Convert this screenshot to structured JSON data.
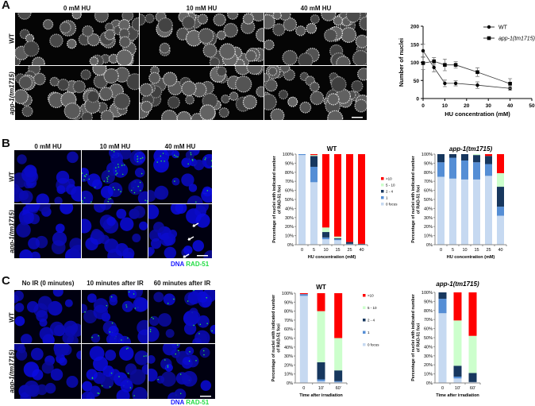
{
  "panels": {
    "A": {
      "label": "A",
      "columns": [
        "0 mM HU",
        "10 mM HU",
        "40 mM HU"
      ],
      "rows": [
        "WT",
        "app-1(tm1715)"
      ],
      "image_tone": "grayscale"
    },
    "B": {
      "label": "B",
      "columns": [
        "0 mM HU",
        "10 mM HU",
        "40 mM HU"
      ],
      "rows": [
        "WT",
        "app-1(tm1715)"
      ],
      "stain_dna": "DNA",
      "stain_rad51": "RAD-51",
      "image_tone": "blue-green"
    },
    "C": {
      "label": "C",
      "columns": [
        "No IR (0 minutes)",
        "10 minutes after IR",
        "60 minutes after IR"
      ],
      "rows": [
        "WT",
        "app-1(tm1715)"
      ],
      "stain_dna": "DNA",
      "stain_rad51": "RAD-51",
      "image_tone": "blue-green"
    }
  },
  "colors": {
    "dna": "#1a1aff",
    "rad51": "#22dd44",
    "0 focus": "#c6d9f1",
    "1": "#558ed5",
    "2 - 4": "#17375e",
    "5 - 10": "#ccffcc",
    ">10": "#ff0000"
  },
  "chart_data": [
    {
      "id": "A",
      "type": "line",
      "xlabel": "HU concentration (mM)",
      "ylabel": "Number of nuclei",
      "xlim": [
        0,
        50
      ],
      "ylim": [
        0,
        200
      ],
      "xticks": [
        0,
        10,
        20,
        30,
        40,
        50
      ],
      "yticks": [
        0,
        50,
        100,
        150,
        200
      ],
      "legend": "top-right",
      "series": [
        {
          "name": "WT",
          "marker": "circle",
          "x": [
            0,
            5,
            10,
            15,
            25,
            40
          ],
          "y": [
            132,
            86,
            42,
            42,
            37,
            28
          ],
          "err": [
            18,
            12,
            9,
            7,
            9,
            5
          ]
        },
        {
          "name": "app-1(tm1715)",
          "marker": "square",
          "x": [
            0,
            5,
            10,
            15,
            25,
            40
          ],
          "y": [
            98,
            103,
            93,
            93,
            73,
            41
          ],
          "err": [
            18,
            10,
            16,
            9,
            12,
            14
          ]
        }
      ]
    },
    {
      "id": "B-WT",
      "type": "stacked-bar",
      "title": "WT",
      "xlabel": "HU concentration (mM)",
      "ylabel": "Percentage of nuclei with indicated number of RAD-51 foci",
      "categories": [
        "0",
        "5",
        "10",
        "15",
        "25",
        "40"
      ],
      "yticks": [
        "0%",
        "10%",
        "20%",
        "30%",
        "40%",
        "50%",
        "60%",
        "70%",
        "80%",
        "90%",
        "100%"
      ],
      "legend": "right",
      "legend_labels": [
        ">10",
        "5 - 10",
        "2 - 4",
        "1",
        "0 focus"
      ],
      "series": [
        {
          "name": "0 focus",
          "values": [
            99,
            69,
            6,
            5,
            0,
            0
          ]
        },
        {
          "name": "1",
          "values": [
            1,
            17,
            2,
            1,
            1,
            0
          ]
        },
        {
          "name": "2 - 4",
          "values": [
            0,
            12,
            6,
            1,
            2,
            1
          ]
        },
        {
          "name": "5 - 10",
          "values": [
            0,
            1,
            5,
            2,
            0,
            0
          ]
        },
        {
          "name": ">10",
          "values": [
            0,
            1,
            81,
            91,
            97,
            99
          ]
        }
      ]
    },
    {
      "id": "B-app1",
      "type": "stacked-bar",
      "title": "app-1(tm1715)",
      "xlabel": "HU concentration (mM)",
      "ylabel": "Percentage of nuclei with indicated number of RAD-51 foci",
      "categories": [
        "0",
        "5",
        "10",
        "15",
        "25",
        "40"
      ],
      "yticks": [
        "0%",
        "10%",
        "20%",
        "30%",
        "40%",
        "50%",
        "60%",
        "70%",
        "80%",
        "90%",
        "100%"
      ],
      "series": [
        {
          "name": "0 focus",
          "values": [
            75,
            73,
            72,
            72,
            76,
            32
          ]
        },
        {
          "name": "1",
          "values": [
            16,
            23,
            21,
            19,
            13,
            10
          ]
        },
        {
          "name": "2 - 4",
          "values": [
            9,
            4,
            7,
            8,
            9,
            22
          ]
        },
        {
          "name": "5 - 10",
          "values": [
            0,
            0,
            0,
            1,
            0,
            15
          ]
        },
        {
          "name": ">10",
          "values": [
            0,
            0,
            0,
            0,
            2,
            21
          ]
        }
      ]
    },
    {
      "id": "C-WT",
      "type": "stacked-bar",
      "title": "WT",
      "xlabel": "Time after irradiation",
      "ylabel": "Percentage of nuclei with indicated number of RAD-51 foci",
      "categories": [
        "0",
        "10'",
        "60'"
      ],
      "yticks": [
        "0%",
        "10%",
        "20%",
        "30%",
        "40%",
        "50%",
        "60%",
        "70%",
        "80%",
        "90%",
        "100%"
      ],
      "legend": "right",
      "legend_labels": [
        ">10",
        "5 - 10",
        "2 - 4",
        "1",
        "0 focus"
      ],
      "series": [
        {
          "name": "0 focus",
          "values": [
            97,
            2,
            1
          ]
        },
        {
          "name": "1",
          "values": [
            2,
            2,
            1
          ]
        },
        {
          "name": "2 - 4",
          "values": [
            0,
            19,
            12
          ]
        },
        {
          "name": "5 - 10",
          "values": [
            0,
            57,
            36
          ]
        },
        {
          "name": ">10",
          "values": [
            1,
            20,
            50
          ]
        }
      ]
    },
    {
      "id": "C-app1",
      "type": "stacked-bar",
      "title": "app-1(tm1715)",
      "xlabel": "Time after irradiation",
      "ylabel": "Percentage of nuclei with indicated number of RAD-51 foci",
      "categories": [
        "0",
        "10'",
        "60'"
      ],
      "yticks": [
        "0%",
        "10%",
        "20%",
        "30%",
        "40%",
        "50%",
        "60%",
        "70%",
        "80%",
        "90%",
        "100%"
      ],
      "series": [
        {
          "name": "0 focus",
          "values": [
            77,
            5,
            1
          ]
        },
        {
          "name": "1",
          "values": [
            16,
            2,
            0
          ]
        },
        {
          "name": "2 - 4",
          "values": [
            7,
            12,
            10
          ]
        },
        {
          "name": "5 - 10",
          "values": [
            0,
            50,
            41
          ]
        },
        {
          "name": ">10",
          "values": [
            0,
            31,
            48
          ]
        }
      ]
    }
  ]
}
